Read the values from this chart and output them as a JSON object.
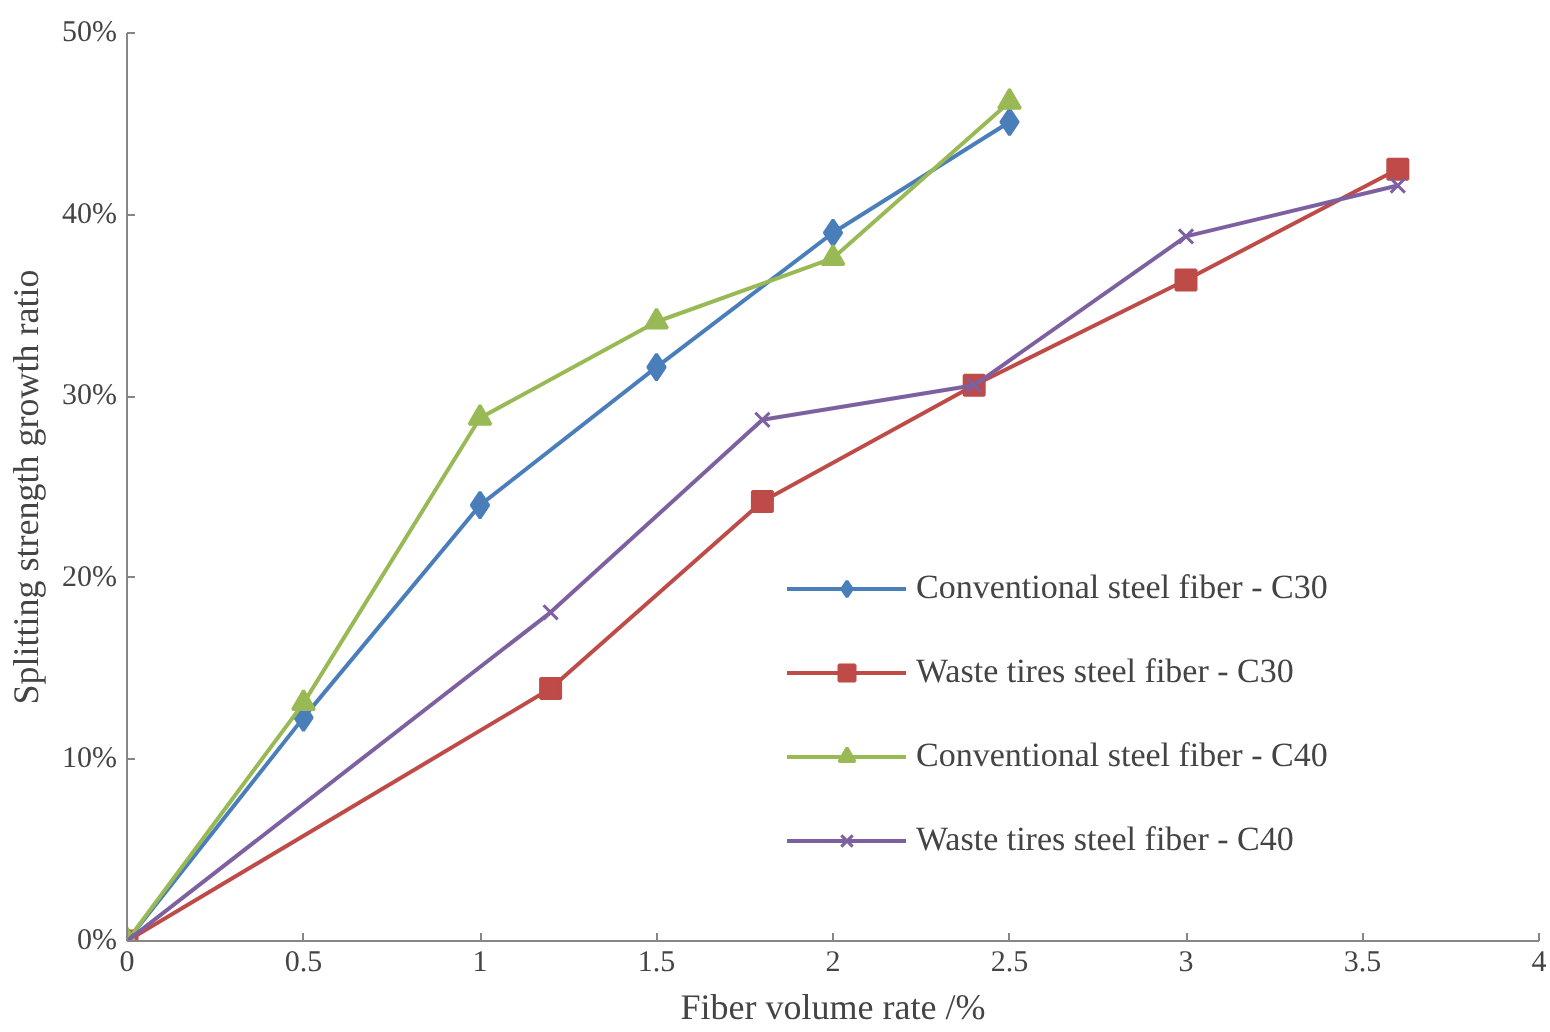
{
  "chart_data": {
    "type": "line",
    "xlabel": "Fiber volume rate /%",
    "ylabel": "Splitting strength growth ratio",
    "xlim": [
      0,
      4
    ],
    "xticks": [
      0,
      0.5,
      1,
      1.5,
      2,
      2.5,
      3,
      3.5,
      4
    ],
    "ylim": [
      0,
      50
    ],
    "yticks": [
      {
        "value": 0,
        "label": "0%"
      },
      {
        "value": 10,
        "label": "10%"
      },
      {
        "value": 20,
        "label": "20%"
      },
      {
        "value": 30,
        "label": "30%"
      },
      {
        "value": 40,
        "label": "40%"
      },
      {
        "value": 50,
        "label": "50%"
      }
    ],
    "grid": false,
    "legend": "right",
    "line_style": "solid",
    "series": [
      {
        "name": "Conventional steel fiber - C30",
        "color": "#4a7ebb",
        "marker": "diamond",
        "x": [
          0,
          0.5,
          1,
          1.5,
          2,
          2.5
        ],
        "values": [
          0,
          12.3,
          24,
          31.6,
          39,
          45.1
        ]
      },
      {
        "name": "Waste tires steel fiber - C30",
        "color": "#be4b48",
        "marker": "square",
        "x": [
          0,
          1.2,
          1.8,
          2.4,
          3,
          3.6
        ],
        "values": [
          0,
          13.9,
          24.2,
          30.6,
          36.4,
          42.5
        ]
      },
      {
        "name": "Conventional steel fiber - C40",
        "color": "#98b954",
        "marker": "triangle",
        "x": [
          0,
          0.5,
          1,
          1.5,
          2,
          2.5
        ],
        "values": [
          0,
          13.1,
          28.8,
          34.1,
          37.6,
          46.2
        ]
      },
      {
        "name": "Waste tires steel fiber - C40",
        "color": "#7d60a0",
        "marker": "x",
        "x": [
          0,
          1.2,
          1.8,
          2.4,
          3,
          3.6
        ],
        "values": [
          0,
          18.1,
          28.7,
          30.6,
          38.8,
          41.6
        ]
      }
    ]
  }
}
